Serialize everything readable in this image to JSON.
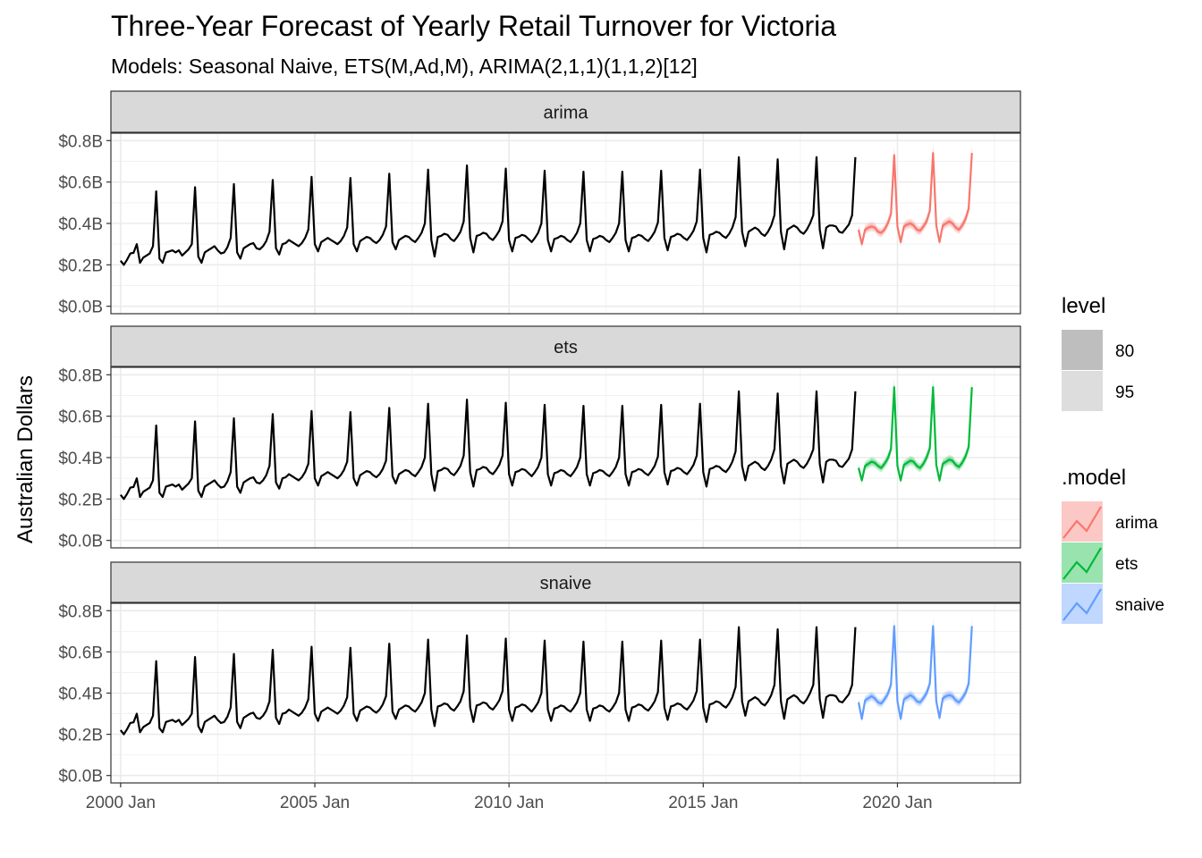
{
  "chart_data": {
    "type": "line",
    "title": "Three-Year Forecast of Yearly Retail Turnover for Victoria",
    "subtitle": "Models: Seasonal Naive, ETS(M,Ad,M), ARIMA(2,1,1)(1,1,2)[12]",
    "xlabel": "",
    "ylabel": "Australian Dollars",
    "y_ticks": [
      "$0.0B",
      "$0.2B",
      "$0.4B",
      "$0.6B",
      "$0.8B"
    ],
    "y_tick_values": [
      0,
      0.2,
      0.4,
      0.6,
      0.8
    ],
    "ylim": [
      0,
      0.8
    ],
    "x_ticks": [
      "2000 Jan",
      "2005 Jan",
      "2010 Jan",
      "2015 Jan",
      "2020 Jan"
    ],
    "x_tick_years": [
      2000,
      2005,
      2010,
      2015,
      2020
    ],
    "xlim": [
      "1999 Oct",
      "2023 Mar"
    ],
    "grid": true,
    "frequency": "monthly",
    "history": {
      "start": "2000 Jan",
      "end": "2018 Dec",
      "values": [
        0.22,
        0.2,
        0.225,
        0.255,
        0.258,
        0.3,
        0.21,
        0.235,
        0.245,
        0.255,
        0.29,
        0.555,
        0.23,
        0.21,
        0.26,
        0.265,
        0.27,
        0.26,
        0.27,
        0.245,
        0.26,
        0.275,
        0.3,
        0.575,
        0.24,
        0.21,
        0.26,
        0.27,
        0.28,
        0.29,
        0.27,
        0.255,
        0.26,
        0.285,
        0.33,
        0.59,
        0.26,
        0.23,
        0.28,
        0.29,
        0.3,
        0.305,
        0.28,
        0.275,
        0.29,
        0.315,
        0.36,
        0.61,
        0.28,
        0.25,
        0.3,
        0.305,
        0.32,
        0.31,
        0.3,
        0.29,
        0.305,
        0.33,
        0.37,
        0.625,
        0.3,
        0.265,
        0.31,
        0.32,
        0.33,
        0.32,
        0.31,
        0.3,
        0.315,
        0.34,
        0.38,
        0.62,
        0.3,
        0.265,
        0.315,
        0.325,
        0.335,
        0.33,
        0.315,
        0.305,
        0.32,
        0.345,
        0.385,
        0.64,
        0.31,
        0.275,
        0.32,
        0.33,
        0.34,
        0.335,
        0.32,
        0.31,
        0.33,
        0.355,
        0.4,
        0.66,
        0.32,
        0.24,
        0.335,
        0.34,
        0.35,
        0.345,
        0.325,
        0.315,
        0.335,
        0.36,
        0.41,
        0.68,
        0.33,
        0.26,
        0.34,
        0.345,
        0.355,
        0.35,
        0.33,
        0.32,
        0.34,
        0.365,
        0.41,
        0.665,
        0.32,
        0.265,
        0.33,
        0.335,
        0.345,
        0.34,
        0.325,
        0.31,
        0.33,
        0.355,
        0.4,
        0.655,
        0.32,
        0.265,
        0.325,
        0.33,
        0.34,
        0.335,
        0.32,
        0.31,
        0.33,
        0.355,
        0.4,
        0.65,
        0.32,
        0.265,
        0.325,
        0.33,
        0.34,
        0.335,
        0.32,
        0.31,
        0.33,
        0.355,
        0.4,
        0.65,
        0.32,
        0.265,
        0.33,
        0.335,
        0.345,
        0.34,
        0.325,
        0.315,
        0.335,
        0.36,
        0.405,
        0.655,
        0.33,
        0.27,
        0.335,
        0.34,
        0.35,
        0.345,
        0.33,
        0.32,
        0.34,
        0.365,
        0.41,
        0.66,
        0.33,
        0.26,
        0.345,
        0.35,
        0.36,
        0.355,
        0.34,
        0.33,
        0.35,
        0.38,
        0.43,
        0.72,
        0.36,
        0.29,
        0.36,
        0.37,
        0.38,
        0.37,
        0.35,
        0.34,
        0.36,
        0.39,
        0.44,
        0.71,
        0.36,
        0.275,
        0.37,
        0.38,
        0.39,
        0.38,
        0.36,
        0.35,
        0.37,
        0.4,
        0.44,
        0.72,
        0.37,
        0.28,
        0.38,
        0.39,
        0.39,
        0.385,
        0.36,
        0.355,
        0.375,
        0.395,
        0.44,
        0.72
      ]
    },
    "series": [
      {
        "name": "arima",
        "color": "#F8766D",
        "start": "2019 Jan",
        "values": [
          0.37,
          0.3,
          0.37,
          0.38,
          0.385,
          0.38,
          0.36,
          0.355,
          0.37,
          0.4,
          0.445,
          0.73,
          0.385,
          0.31,
          0.385,
          0.395,
          0.4,
          0.39,
          0.37,
          0.365,
          0.385,
          0.41,
          0.46,
          0.74,
          0.39,
          0.31,
          0.39,
          0.4,
          0.41,
          0.4,
          0.38,
          0.37,
          0.39,
          0.42,
          0.47,
          0.74
        ]
      },
      {
        "name": "ets",
        "color": "#00BA38",
        "start": "2019 Jan",
        "values": [
          0.35,
          0.29,
          0.36,
          0.37,
          0.38,
          0.375,
          0.36,
          0.35,
          0.37,
          0.395,
          0.44,
          0.74,
          0.36,
          0.29,
          0.365,
          0.375,
          0.385,
          0.38,
          0.36,
          0.35,
          0.37,
          0.4,
          0.445,
          0.74,
          0.365,
          0.29,
          0.37,
          0.38,
          0.39,
          0.385,
          0.365,
          0.355,
          0.375,
          0.405,
          0.45,
          0.74
        ]
      },
      {
        "name": "snaive",
        "color": "#619CFF",
        "start": "2019 Jan",
        "values": [
          0.355,
          0.275,
          0.365,
          0.375,
          0.385,
          0.375,
          0.355,
          0.35,
          0.37,
          0.395,
          0.44,
          0.725,
          0.36,
          0.275,
          0.37,
          0.38,
          0.39,
          0.38,
          0.36,
          0.355,
          0.375,
          0.4,
          0.445,
          0.725,
          0.36,
          0.28,
          0.375,
          0.385,
          0.39,
          0.385,
          0.365,
          0.355,
          0.375,
          0.4,
          0.445,
          0.725
        ]
      }
    ],
    "facets": [
      "arima",
      "ets",
      "snaive"
    ],
    "legend": {
      "position": "right",
      "level_title": "level",
      "levels": [
        "80",
        "95"
      ],
      "level_colors": [
        "#BEBEBE",
        "#DDDDDD"
      ],
      "model_title": ".model",
      "models": [
        "arima",
        "ets",
        "snaive"
      ]
    }
  }
}
